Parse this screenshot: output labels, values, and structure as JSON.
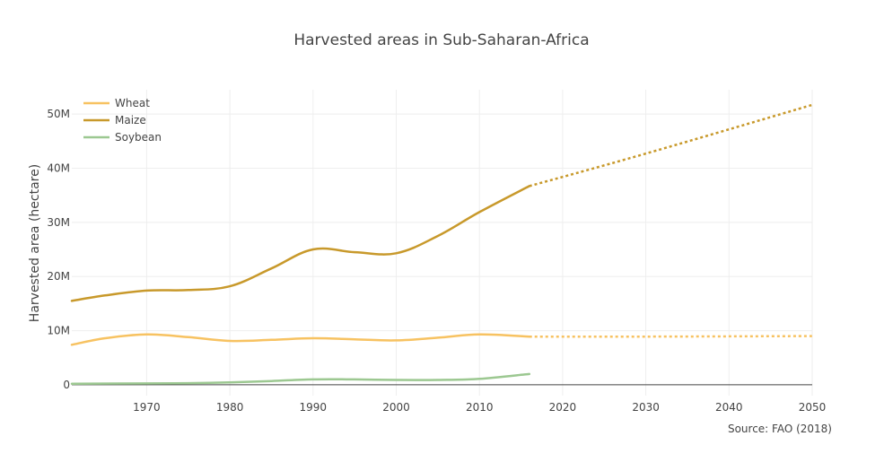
{
  "chart_data": {
    "type": "line",
    "title": "Harvested areas in Sub-Saharan-Africa",
    "ylabel": "Harvested area (hectare)",
    "xlabel": "",
    "source": "Source: FAO (2018)",
    "xlim": [
      1961,
      2050
    ],
    "ylim": [
      -2000000,
      54500000
    ],
    "x_ticks": [
      1970,
      1980,
      1990,
      2000,
      2010,
      2020,
      2030,
      2040,
      2050
    ],
    "y_ticks": [
      {
        "value": 0,
        "label": "0"
      },
      {
        "value": 10000000,
        "label": "10M"
      },
      {
        "value": 20000000,
        "label": "20M"
      },
      {
        "value": 30000000,
        "label": "30M"
      },
      {
        "value": 40000000,
        "label": "40M"
      },
      {
        "value": 50000000,
        "label": "50M"
      }
    ],
    "legend_position": "top-left",
    "grid": true,
    "series": [
      {
        "name": "Wheat",
        "color": "#f7c261",
        "x": [
          1961,
          1965,
          1970,
          1975,
          1980,
          1985,
          1990,
          1995,
          2000,
          2005,
          2010,
          2016
        ],
        "y": [
          7400000,
          8600000,
          9300000,
          8800000,
          8100000,
          8300000,
          8600000,
          8400000,
          8200000,
          8700000,
          9300000,
          8900000
        ],
        "projection": {
          "x": [
            2016,
            2030,
            2050
          ],
          "y": [
            8900000,
            8900000,
            9000000
          ]
        }
      },
      {
        "name": "Maize",
        "color": "#c8992b",
        "x": [
          1961,
          1965,
          1970,
          1975,
          1980,
          1985,
          1990,
          1995,
          2000,
          2005,
          2010,
          2016
        ],
        "y": [
          15500000,
          16500000,
          17400000,
          17500000,
          18200000,
          21500000,
          25000000,
          24500000,
          24300000,
          27500000,
          31900000,
          36700000
        ],
        "projection": {
          "x": [
            2016,
            2030,
            2050
          ],
          "y": [
            36700000,
            42700000,
            51700000
          ]
        }
      },
      {
        "name": "Soybean",
        "color": "#9cc891",
        "x": [
          1961,
          1970,
          1975,
          1980,
          1985,
          1990,
          1995,
          2000,
          2005,
          2010,
          2016
        ],
        "y": [
          200000,
          250000,
          300000,
          450000,
          700000,
          1000000,
          1000000,
          900000,
          900000,
          1100000,
          2000000
        ]
      }
    ]
  }
}
